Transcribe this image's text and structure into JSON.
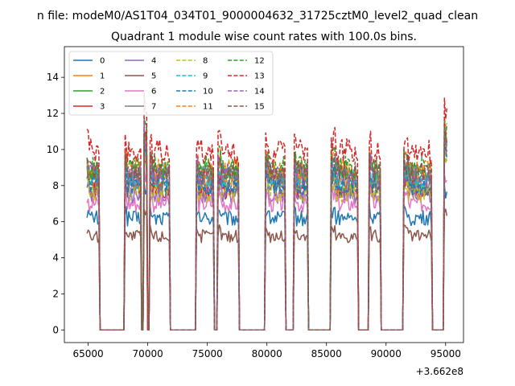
{
  "suptitle": "n file: modeM0/AS1T04_034T01_9000004632_31725cztM0_level2_quad_clean",
  "chart_data": {
    "type": "line",
    "title": "Quadrant 1 module wise count rates with 100.0s bins.",
    "xlabel": "",
    "ylabel": "",
    "x_offset_label": "+3.662e8",
    "xlim": [
      63000,
      96500
    ],
    "ylim": [
      -0.7,
      15.7
    ],
    "xticks": [
      65000,
      70000,
      75000,
      80000,
      85000,
      90000,
      95000
    ],
    "yticks": [
      0,
      2,
      4,
      6,
      8,
      10,
      12,
      14
    ],
    "grid": false,
    "legend_position": "top-left",
    "legend_columns": 4,
    "on_intervals": [
      [
        64900,
        65900
      ],
      [
        68050,
        69450
      ],
      [
        69700,
        69900
      ],
      [
        70150,
        71800
      ],
      [
        74050,
        75500
      ],
      [
        75850,
        77600
      ],
      [
        79900,
        81500
      ],
      [
        82300,
        83400
      ],
      [
        85400,
        87600
      ],
      [
        88600,
        89500
      ],
      [
        91500,
        93800
      ],
      [
        94900,
        95100
      ]
    ],
    "off_level": 0,
    "series": [
      {
        "name": "0",
        "style": "solid",
        "color": "#1f77b4",
        "level": 6.2
      },
      {
        "name": "1",
        "style": "solid",
        "color": "#ff7f0e",
        "level": 8.3
      },
      {
        "name": "2",
        "style": "solid",
        "color": "#2ca02c",
        "level": 8.7
      },
      {
        "name": "3",
        "style": "solid",
        "color": "#d62728",
        "level": 7.8
      },
      {
        "name": "4",
        "style": "solid",
        "color": "#9467bd",
        "level": 7.5
      },
      {
        "name": "5",
        "style": "solid",
        "color": "#8c564b",
        "level": 5.2
      },
      {
        "name": "6",
        "style": "solid",
        "color": "#e377c2",
        "level": 7.0
      },
      {
        "name": "7",
        "style": "solid",
        "color": "#7f7f7f",
        "level": 8.1
      },
      {
        "name": "8",
        "style": "dashed",
        "color": "#bcbd22",
        "level": 7.6
      },
      {
        "name": "9",
        "style": "dashed",
        "color": "#17becf",
        "level": 8.4
      },
      {
        "name": "10",
        "style": "dashed",
        "color": "#1f77b4",
        "level": 8.0
      },
      {
        "name": "11",
        "style": "dashed",
        "color": "#ff7f0e",
        "level": 8.9
      },
      {
        "name": "12",
        "style": "dashed",
        "color": "#2ca02c",
        "level": 9.0
      },
      {
        "name": "13",
        "style": "dashed",
        "color": "#d62728",
        "level": 9.9
      },
      {
        "name": "14",
        "style": "dashed",
        "color": "#9467bd",
        "level": 8.6
      },
      {
        "name": "15",
        "style": "dashed",
        "color": "#8c564b",
        "level": 8.8
      }
    ]
  }
}
